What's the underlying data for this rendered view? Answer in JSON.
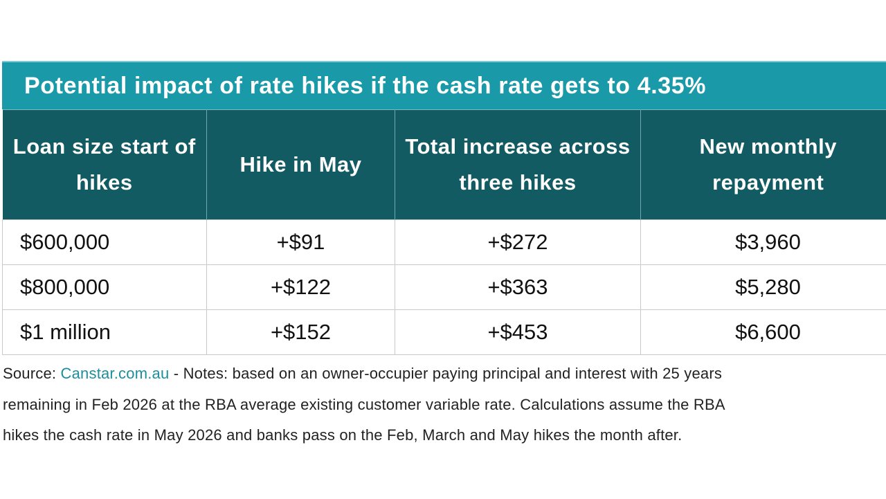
{
  "table": {
    "title": "Potential impact of rate hikes if the cash rate gets to 4.35%",
    "headers": [
      "Loan size start of hikes",
      "Hike in May",
      "Total increase across three hikes",
      "New monthly repayment"
    ],
    "rows": [
      [
        "$600,000",
        "+$91",
        "+$272",
        "$3,960"
      ],
      [
        "$800,000",
        "+$122",
        "+$363",
        "$5,280"
      ],
      [
        "$1 million",
        "+$152",
        "+$453",
        "$6,600"
      ]
    ]
  },
  "note": {
    "source_label": "Source: ",
    "source_link": "Canstar.com.au",
    "line1_rest": " - Notes: based on an owner-occupier paying principal and interest with 25 years",
    "line2": "remaining in Feb 2026 at the RBA average existing customer variable rate. Calculations assume the RBA",
    "line3": "hikes the cash rate in May 2026 and banks pass on the Feb, March and May hikes the month after."
  },
  "colors": {
    "title_bg": "#1a9aa9",
    "header_bg": "#125b62",
    "link": "#1b8f9a"
  }
}
